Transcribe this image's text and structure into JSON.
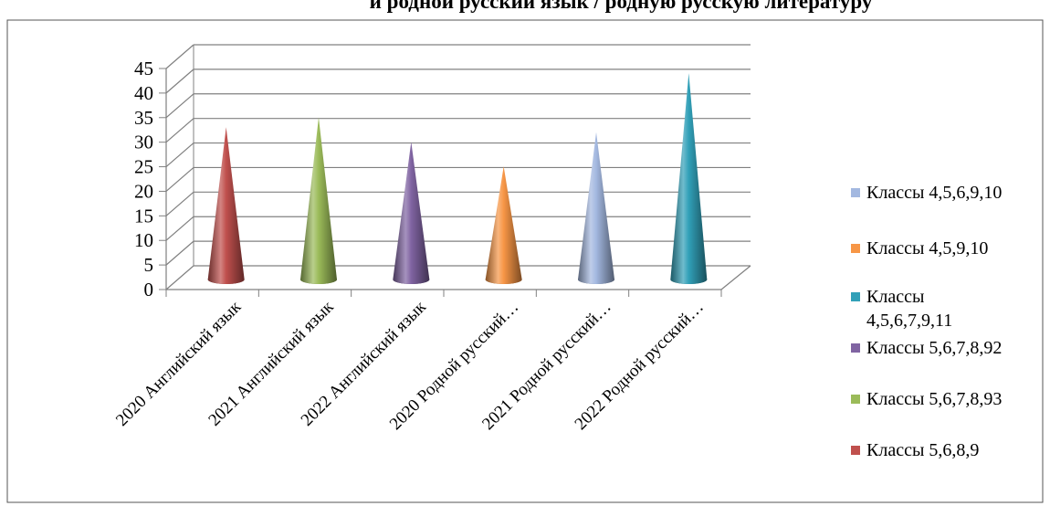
{
  "chart_data": {
    "type": "bar",
    "shape": "3d-cone",
    "title": "и родной русский язык / родную русскую литературу",
    "categories": [
      "2020 Английский язык",
      "2021 Английский язык",
      "2022 Английский язык",
      "2020 Родной русский…",
      "2021 Родной русский…",
      "2022 Родной русский…"
    ],
    "ylim": [
      0,
      45
    ],
    "yticks": [
      0,
      5,
      10,
      15,
      20,
      25,
      30,
      35,
      40,
      45
    ],
    "grid": true,
    "legend_position": "right",
    "series": [
      {
        "name": "Классы 5,6,8,9",
        "color": "#c0504d",
        "values": [
          31,
          null,
          null,
          null,
          null,
          null
        ]
      },
      {
        "name": "Классы 5,6,7,8,93",
        "color": "#9bbb59",
        "values": [
          null,
          33,
          null,
          null,
          null,
          null
        ]
      },
      {
        "name": "Классы 5,6,7,8,92",
        "color": "#8064a2",
        "values": [
          null,
          null,
          28,
          null,
          null,
          null
        ]
      },
      {
        "name": "Классы 4,5,9,10",
        "color": "#f79646",
        "values": [
          null,
          null,
          null,
          23,
          null,
          null
        ]
      },
      {
        "name": "Классы 4,5,6,9,10",
        "color": "#a3b8e0",
        "values": [
          null,
          null,
          null,
          null,
          30,
          null
        ]
      },
      {
        "name": "Классы 4,5,6,7,9,11",
        "color": "#31a0b8",
        "values": [
          null,
          null,
          null,
          null,
          null,
          42
        ]
      }
    ],
    "legend_order": [
      4,
      3,
      5,
      2,
      1,
      0
    ]
  }
}
